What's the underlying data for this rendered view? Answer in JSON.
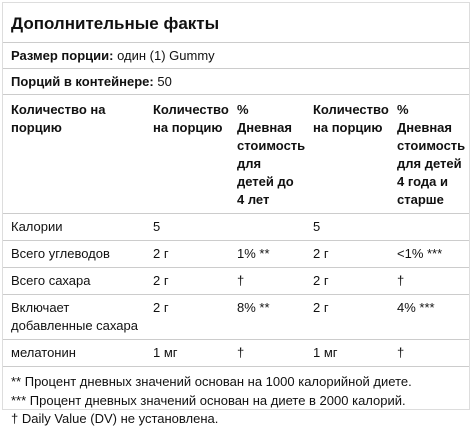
{
  "title": "Дополнительные факты",
  "serving_size": {
    "label": "Размер порции:",
    "value": "один (1) Gummy"
  },
  "servings_per_container": {
    "label": "Порций в контейнере:",
    "value": "50"
  },
  "table": {
    "header": [
      "Количество на порцию",
      "Количество на порцию",
      "% Дневная стоимость для детей до 4 лет",
      "Количество на порцию",
      "% Дневная стоимость для детей 4 года и старше"
    ],
    "rows": [
      [
        "Калории",
        "5",
        null,
        "5",
        null
      ],
      [
        "Всего углеводов",
        "2 г",
        "1% **",
        "2 г",
        "<1% ***"
      ],
      [
        "Всего сахара",
        "2 г",
        "†",
        "2 г",
        "†"
      ],
      [
        "Включает добавленные сахара",
        "2 г",
        "8% **",
        "2 г",
        "4% ***"
      ],
      [
        "мелатонин",
        "1 мг",
        "†",
        "1 мг",
        "†"
      ]
    ]
  },
  "footnotes": [
    "** Процент дневных значений основан на 1000 калорийной диете.",
    "*** Процент дневных значений основан на диете в 2000 калорий.",
    "† Daily Value (DV) не установлена."
  ]
}
